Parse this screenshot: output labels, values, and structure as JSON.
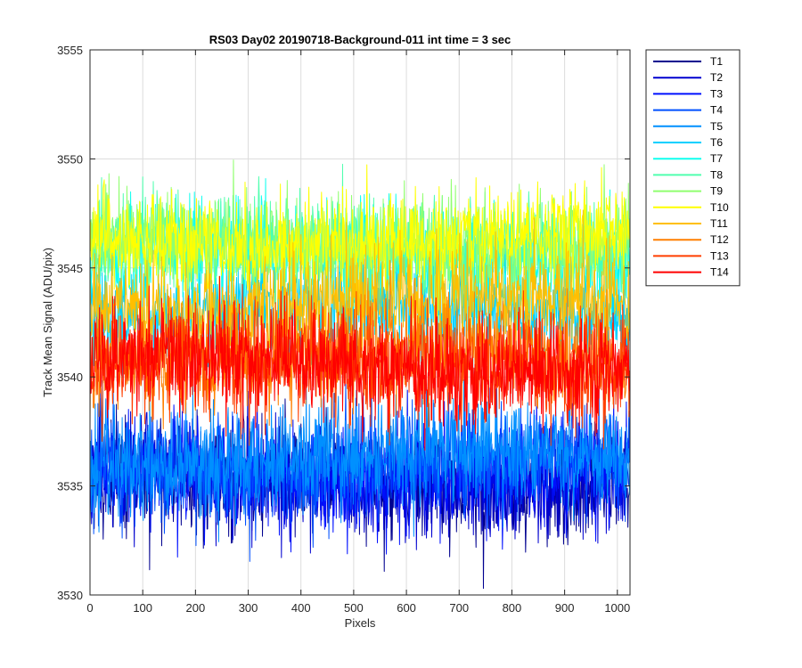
{
  "chart_data": {
    "type": "line",
    "title": "RS03 Day02 20190718-Background-011 int time = 3 sec",
    "xlabel": "Pixels",
    "ylabel": "Track Mean Signal (ADU/pix)",
    "xlim": [
      0,
      1024
    ],
    "ylim": [
      3530,
      3555
    ],
    "xticks": [
      0,
      100,
      200,
      300,
      400,
      500,
      600,
      700,
      800,
      900,
      1000
    ],
    "yticks": [
      3530,
      3535,
      3540,
      3545,
      3550,
      3555
    ],
    "grid": true,
    "legend_position": "outside-top-right",
    "num_points": 1024,
    "series": [
      {
        "name": "T1",
        "color": "#00008F",
        "mean": 3535.2,
        "noise": 1.25
      },
      {
        "name": "T2",
        "color": "#0000CF",
        "mean": 3535.4,
        "noise": 1.2
      },
      {
        "name": "T3",
        "color": "#0010FF",
        "mean": 3535.6,
        "noise": 1.2
      },
      {
        "name": "T4",
        "color": "#0050FF",
        "mean": 3536.0,
        "noise": 1.2
      },
      {
        "name": "T5",
        "color": "#0090FF",
        "mean": 3536.3,
        "noise": 1.2
      },
      {
        "name": "T6",
        "color": "#00D0FF",
        "mean": 3543.0,
        "noise": 1.1
      },
      {
        "name": "T7",
        "color": "#10FFEF",
        "mean": 3545.5,
        "noise": 1.1
      },
      {
        "name": "T8",
        "color": "#50FFAF",
        "mean": 3546.0,
        "noise": 1.1
      },
      {
        "name": "T9",
        "color": "#90FF6F",
        "mean": 3546.2,
        "noise": 1.1
      },
      {
        "name": "T10",
        "color": "#FFFF00",
        "mean": 3546.3,
        "noise": 1.1
      },
      {
        "name": "T11",
        "color": "#FFBF00",
        "mean": 3543.5,
        "noise": 1.2
      },
      {
        "name": "T12",
        "color": "#FF7F00",
        "mean": 3541.0,
        "noise": 1.2
      },
      {
        "name": "T13",
        "color": "#FF3F00",
        "mean": 3540.5,
        "noise": 1.2
      },
      {
        "name": "T14",
        "color": "#FF0000",
        "mean": 3540.6,
        "noise": 1.2
      }
    ]
  }
}
